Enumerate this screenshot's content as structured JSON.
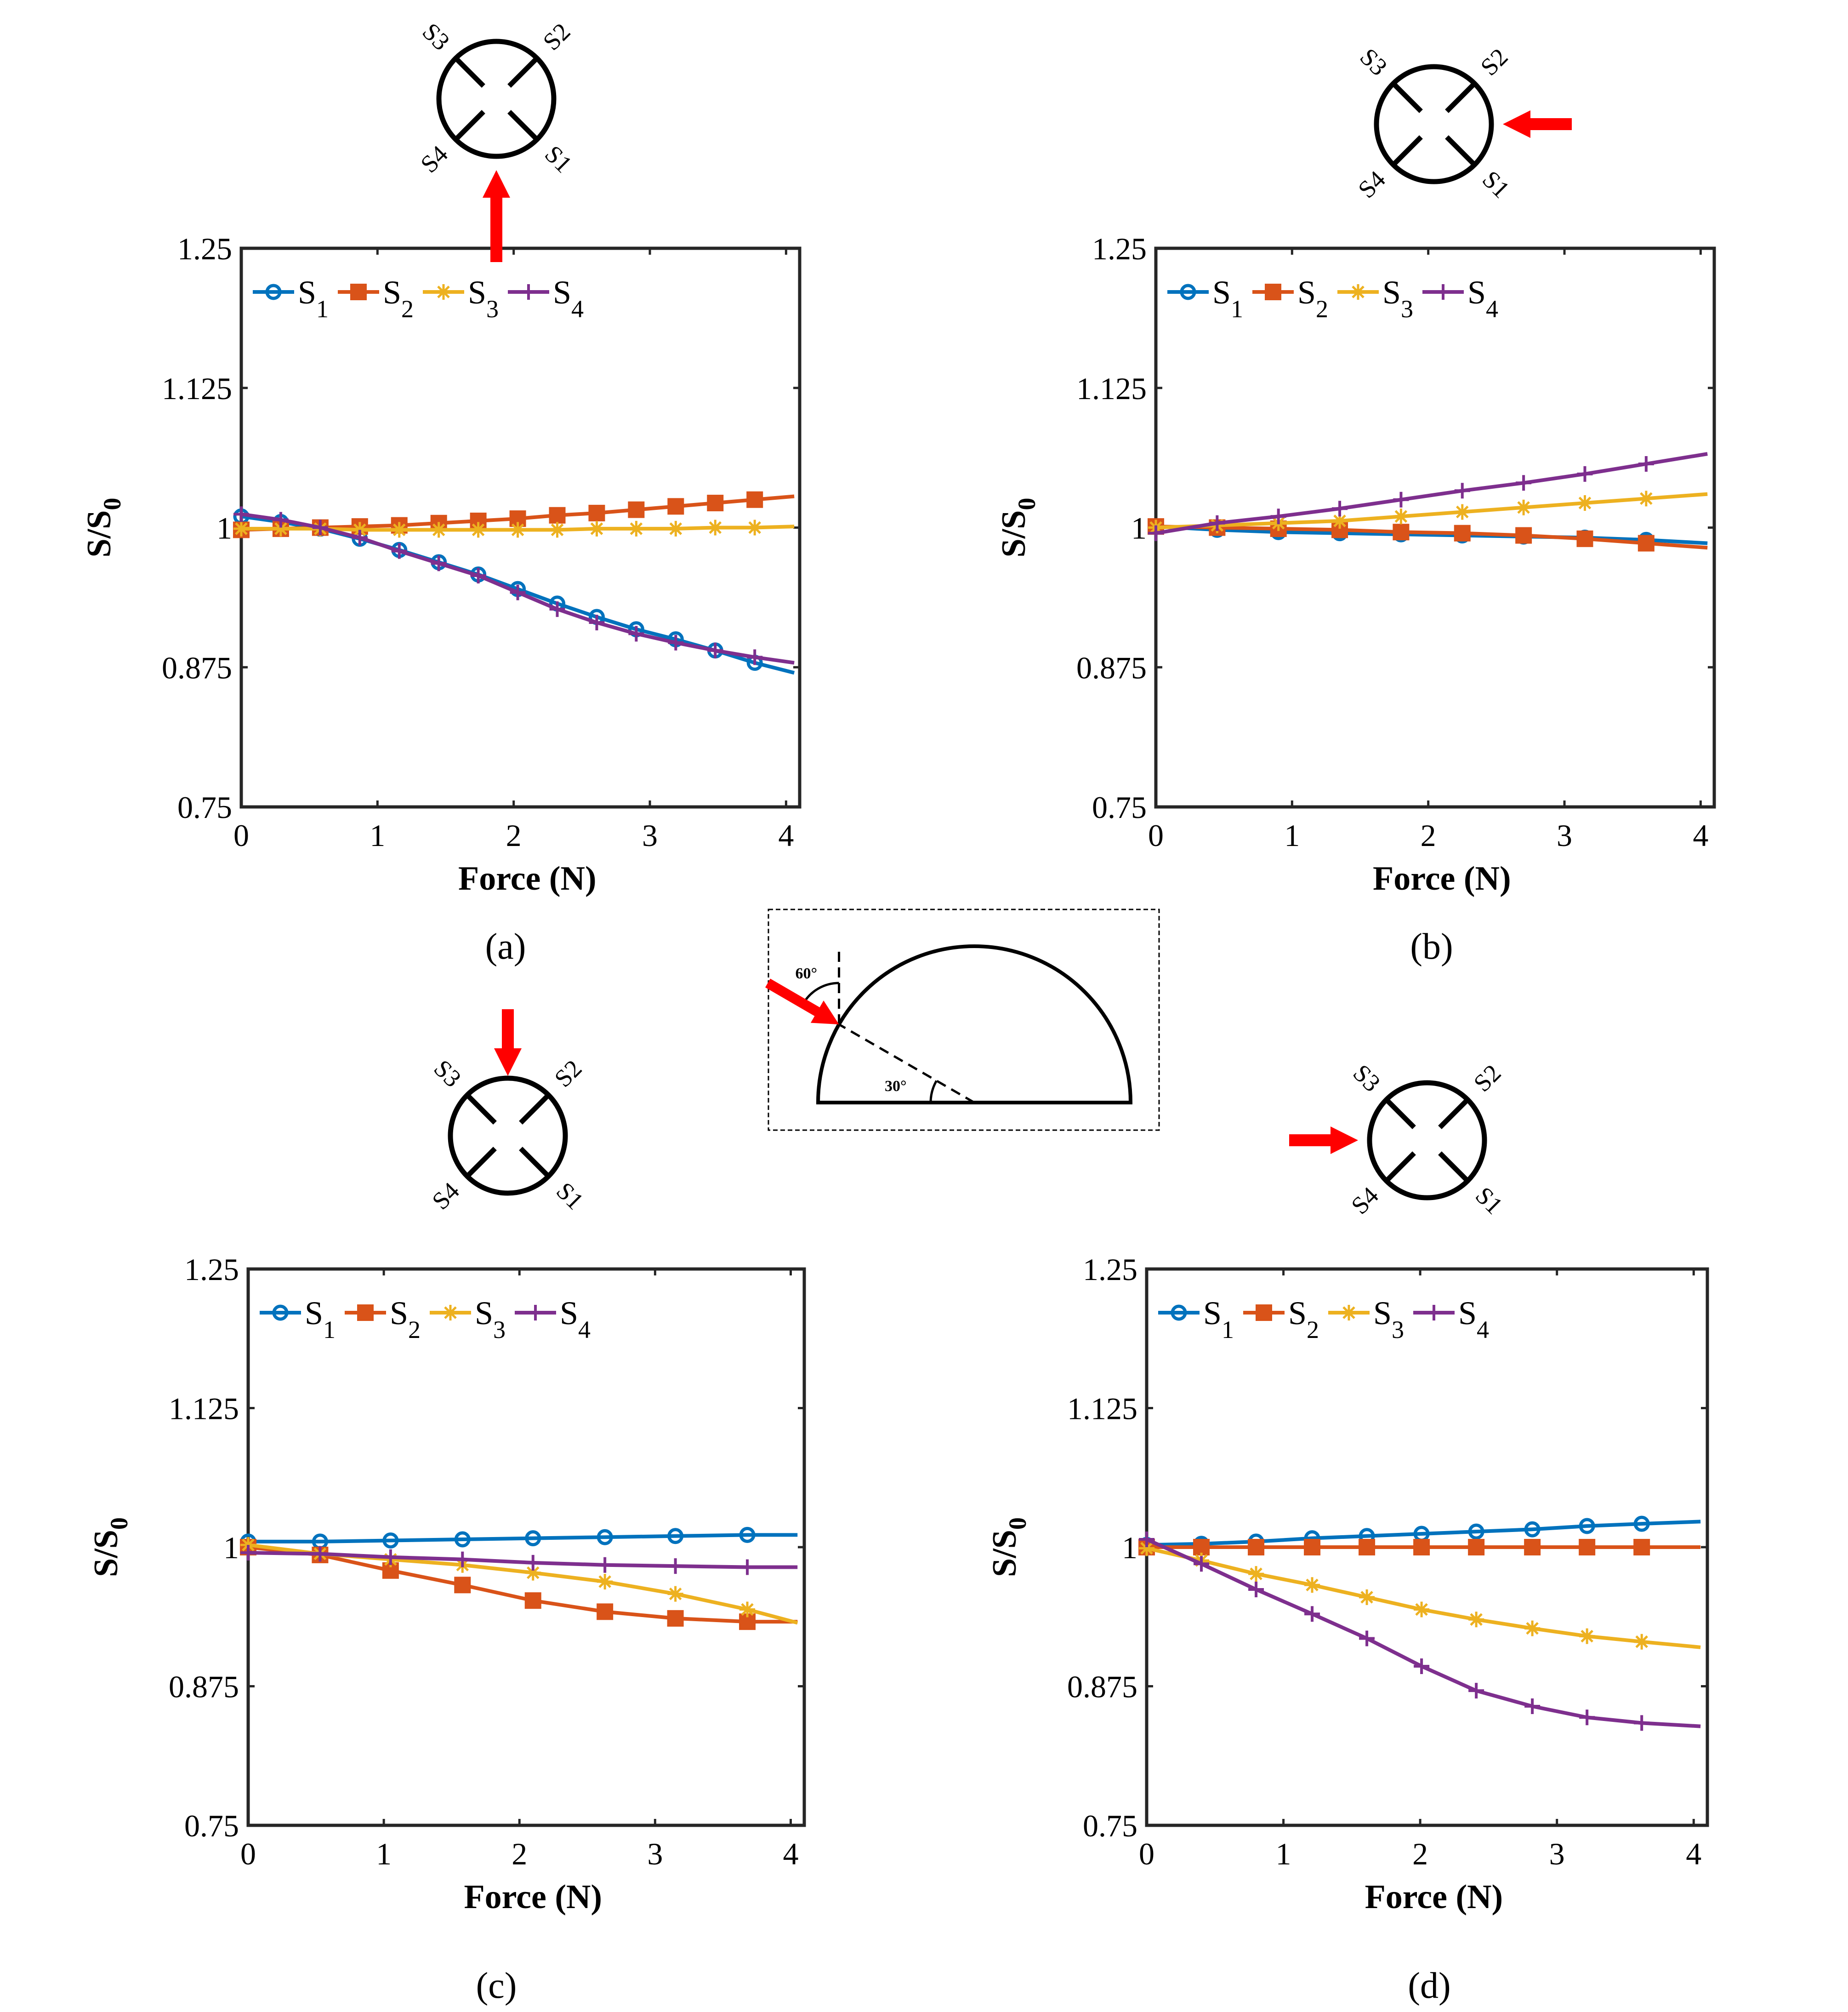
{
  "colors": {
    "s1": "#0072BD",
    "s2": "#D95319",
    "s3": "#EDB120",
    "s4": "#7E2F8E",
    "arrow": "#FF0000",
    "axis": "#262626",
    "sensor": "#000000"
  },
  "sensor_labels": [
    "S1",
    "S2",
    "S3",
    "S4"
  ],
  "inset": {
    "angle_top": "60°",
    "angle_bottom": "30°"
  },
  "chart_data": [
    {
      "type": "line",
      "panel_label": "(a)",
      "force_direction": "up",
      "xlabel": "Force (N)",
      "ylabel": "S/S0",
      "xlim": [
        0,
        4.1
      ],
      "ylim": [
        0.75,
        1.25
      ],
      "xticks": [
        0,
        1,
        2,
        3,
        4
      ],
      "yticks": [
        0.75,
        0.875,
        1,
        1.125,
        1.25
      ],
      "ytick_labels": [
        "0.75",
        "0.875",
        "1",
        "1.125",
        "1.25"
      ],
      "legend_location": "top-left",
      "x": [
        0,
        0.29,
        0.58,
        0.87,
        1.16,
        1.45,
        1.74,
        2.03,
        2.32,
        2.61,
        2.9,
        3.19,
        3.48,
        3.77,
        4.06
      ],
      "series": [
        {
          "name": "S",
          "sub": "1",
          "marker": "circle",
          "marker_every": 1,
          "values": [
            1.01,
            1.005,
            0.999,
            0.99,
            0.98,
            0.969,
            0.958,
            0.945,
            0.932,
            0.92,
            0.909,
            0.9,
            0.89,
            0.879,
            0.87
          ]
        },
        {
          "name": "S",
          "sub": "2",
          "marker": "square",
          "marker_every": 1,
          "values": [
            0.998,
            0.999,
            1.0,
            1.001,
            1.002,
            1.004,
            1.006,
            1.008,
            1.011,
            1.013,
            1.016,
            1.019,
            1.022,
            1.025,
            1.028
          ]
        },
        {
          "name": "S",
          "sub": "3",
          "marker": "star",
          "marker_every": 1,
          "values": [
            0.999,
            0.999,
            0.999,
            0.998,
            0.998,
            0.998,
            0.998,
            0.998,
            0.998,
            0.999,
            0.999,
            0.999,
            1.0,
            1.0,
            1.001
          ]
        },
        {
          "name": "S",
          "sub": "4",
          "marker": "plus",
          "marker_every": 1,
          "values": [
            1.012,
            1.007,
            1.0,
            0.991,
            0.979,
            0.968,
            0.957,
            0.942,
            0.927,
            0.915,
            0.905,
            0.897,
            0.89,
            0.884,
            0.879
          ]
        }
      ]
    },
    {
      "type": "line",
      "panel_label": "(b)",
      "force_direction": "left",
      "xlabel": "Force (N)",
      "ylabel": "S/S0",
      "xlim": [
        0,
        4.1
      ],
      "ylim": [
        0.75,
        1.25
      ],
      "xticks": [
        0,
        1,
        2,
        3,
        4
      ],
      "yticks": [
        0.75,
        0.875,
        1,
        1.125,
        1.25
      ],
      "ytick_labels": [
        "0.75",
        "0.875",
        "1",
        "1.125",
        "1.25"
      ],
      "legend_location": "top-left",
      "x": [
        0,
        0.45,
        0.9,
        1.35,
        1.8,
        2.25,
        2.7,
        3.15,
        3.6,
        4.05
      ],
      "series": [
        {
          "name": "S",
          "sub": "1",
          "marker": "circle",
          "marker_every": 1,
          "values": [
            1.001,
            0.998,
            0.996,
            0.995,
            0.994,
            0.993,
            0.992,
            0.991,
            0.989,
            0.986
          ]
        },
        {
          "name": "S",
          "sub": "2",
          "marker": "square",
          "marker_every": 1,
          "values": [
            1.001,
            1.0,
            0.999,
            0.998,
            0.996,
            0.995,
            0.993,
            0.99,
            0.986,
            0.982
          ]
        },
        {
          "name": "S",
          "sub": "3",
          "marker": "star",
          "marker_every": 1,
          "values": [
            1.0,
            1.002,
            1.004,
            1.006,
            1.01,
            1.014,
            1.018,
            1.022,
            1.026,
            1.03
          ]
        },
        {
          "name": "S",
          "sub": "4",
          "marker": "plus",
          "marker_every": 1,
          "values": [
            0.995,
            1.004,
            1.01,
            1.017,
            1.025,
            1.033,
            1.04,
            1.048,
            1.057,
            1.066
          ]
        }
      ]
    },
    {
      "type": "line",
      "panel_label": "(c)",
      "force_direction": "down",
      "xlabel": "Force (N)",
      "ylabel": "S/S0",
      "xlim": [
        0,
        4.1
      ],
      "ylim": [
        0.75,
        1.25
      ],
      "xticks": [
        0,
        1,
        2,
        3,
        4
      ],
      "yticks": [
        0.75,
        0.875,
        1,
        1.125,
        1.25
      ],
      "ytick_labels": [
        "0.75",
        "0.875",
        "1",
        "1.125",
        "1.25"
      ],
      "legend_location": "top-left",
      "x": [
        0,
        0.53,
        1.05,
        1.58,
        2.1,
        2.63,
        3.15,
        3.68,
        4.05
      ],
      "series": [
        {
          "name": "S",
          "sub": "1",
          "marker": "circle",
          "marker_every": 1,
          "values": [
            1.005,
            1.005,
            1.006,
            1.007,
            1.008,
            1.009,
            1.01,
            1.011,
            1.011
          ]
        },
        {
          "name": "S",
          "sub": "2",
          "marker": "square",
          "marker_every": 1,
          "values": [
            1.0,
            0.993,
            0.979,
            0.966,
            0.952,
            0.942,
            0.936,
            0.933,
            0.933
          ]
        },
        {
          "name": "S",
          "sub": "3",
          "marker": "star",
          "marker_every": 1,
          "values": [
            1.002,
            0.994,
            0.989,
            0.984,
            0.977,
            0.969,
            0.958,
            0.944,
            0.932
          ]
        },
        {
          "name": "S",
          "sub": "4",
          "marker": "plus",
          "marker_every": 1,
          "values": [
            0.995,
            0.994,
            0.991,
            0.989,
            0.986,
            0.984,
            0.983,
            0.982,
            0.982
          ]
        }
      ]
    },
    {
      "type": "line",
      "panel_label": "(d)",
      "force_direction": "right",
      "xlabel": "Force (N)",
      "ylabel": "S/S0",
      "xlim": [
        0,
        4.1
      ],
      "ylim": [
        0.75,
        1.25
      ],
      "xticks": [
        0,
        1,
        2,
        3,
        4
      ],
      "yticks": [
        0.75,
        0.875,
        1,
        1.125,
        1.25
      ],
      "ytick_labels": [
        "0.75",
        "0.875",
        "1",
        "1.125",
        "1.25"
      ],
      "legend_location": "top-left",
      "x": [
        0,
        0.4,
        0.8,
        1.21,
        1.61,
        2.01,
        2.41,
        2.82,
        3.22,
        3.62,
        4.05
      ],
      "series": [
        {
          "name": "S",
          "sub": "1",
          "marker": "circle",
          "marker_every": 1,
          "values": [
            1.002,
            1.003,
            1.005,
            1.008,
            1.01,
            1.012,
            1.014,
            1.016,
            1.019,
            1.021,
            1.023
          ]
        },
        {
          "name": "S",
          "sub": "2",
          "marker": "square",
          "marker_every": 1,
          "values": [
            1.0,
            1.0,
            1.0,
            1.0,
            1.0,
            1.0,
            1.0,
            1.0,
            1.0,
            1.0,
            1.0
          ]
        },
        {
          "name": "S",
          "sub": "3",
          "marker": "star",
          "marker_every": 1,
          "values": [
            0.999,
            0.988,
            0.976,
            0.966,
            0.955,
            0.944,
            0.935,
            0.927,
            0.92,
            0.915,
            0.91
          ]
        },
        {
          "name": "S",
          "sub": "4",
          "marker": "plus",
          "marker_every": 1,
          "values": [
            1.007,
            0.985,
            0.962,
            0.94,
            0.918,
            0.893,
            0.871,
            0.857,
            0.847,
            0.842,
            0.839
          ]
        }
      ]
    }
  ]
}
